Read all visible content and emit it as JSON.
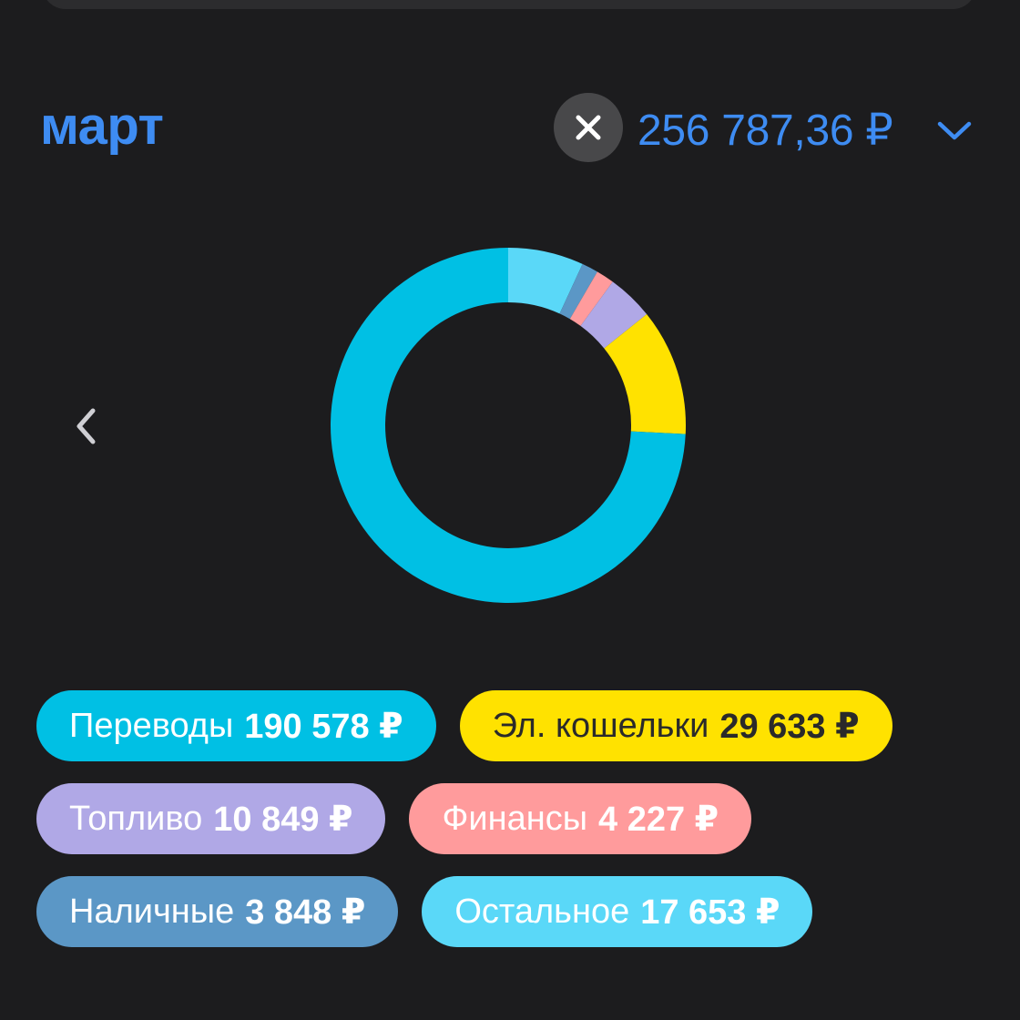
{
  "header": {
    "month": "март",
    "total": "256 787,36 ₽",
    "accent_color": "#3e8cf2",
    "clear_icon": "close-icon",
    "dropdown_icon": "chevron-down-icon"
  },
  "navigation": {
    "prev_icon": "chevron-left-icon"
  },
  "chart_data": {
    "type": "pie",
    "style": "donut",
    "title": "",
    "slices": [
      {
        "label": "Остальное",
        "value": 17653,
        "color": "#5ad8f8"
      },
      {
        "label": "Наличные",
        "value": 3848,
        "color": "#5b97c6"
      },
      {
        "label": "Финансы",
        "value": 4227,
        "color": "#ff9b9c"
      },
      {
        "label": "Топливо",
        "value": 10849,
        "color": "#b0a8e6"
      },
      {
        "label": "Эл. кошельки",
        "value": 29633,
        "color": "#ffe200"
      },
      {
        "label": "Переводы",
        "value": 190578,
        "color": "#00c0e4"
      }
    ]
  },
  "chips": [
    [
      {
        "label": "Переводы",
        "amount": "190 578 ₽",
        "bg": "#00c0e4",
        "fg": "#ffffff"
      },
      {
        "label": "Эл. кошельки",
        "amount": "29 633 ₽",
        "bg": "#ffe200",
        "fg": "#2a2a2a"
      }
    ],
    [
      {
        "label": "Топливо",
        "amount": "10 849 ₽",
        "bg": "#b0a8e6",
        "fg": "#ffffff"
      },
      {
        "label": "Финансы",
        "amount": "4 227 ₽",
        "bg": "#ff9b9c",
        "fg": "#ffffff"
      }
    ],
    [
      {
        "label": "Наличные",
        "amount": "3 848 ₽",
        "bg": "#5b97c6",
        "fg": "#ffffff"
      },
      {
        "label": "Остальное",
        "amount": "17 653 ₽",
        "bg": "#5ad8f8",
        "fg": "#ffffff"
      }
    ]
  ]
}
